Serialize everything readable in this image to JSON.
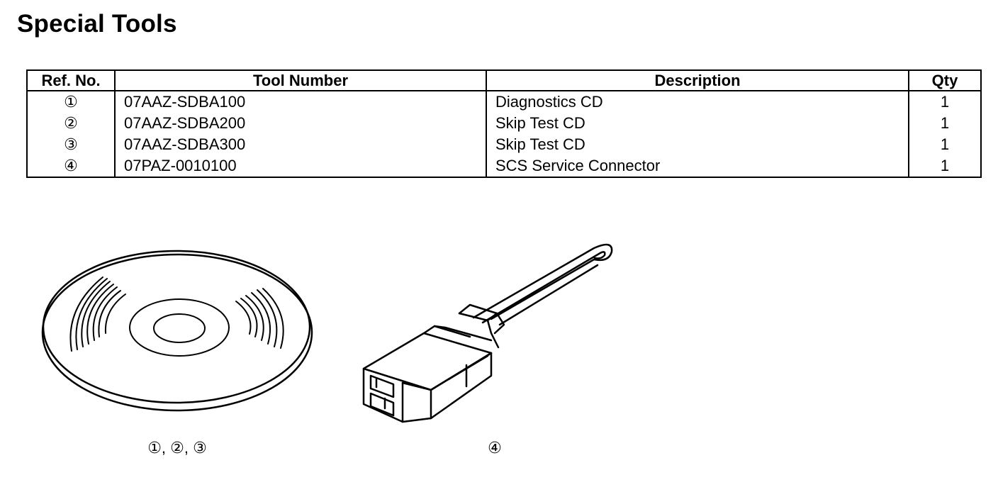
{
  "page": {
    "title": "Special Tools"
  },
  "table": {
    "headers": {
      "ref": "Ref. No.",
      "tool": "Tool Number",
      "description": "Description",
      "qty": "Qty"
    },
    "rows": [
      {
        "ref": "①",
        "tool": "07AAZ-SDBA100",
        "description": "Diagnostics CD",
        "qty": "1"
      },
      {
        "ref": "②",
        "tool": "07AAZ-SDBA200",
        "description": "Skip Test CD",
        "qty": "1"
      },
      {
        "ref": "③",
        "tool": "07AAZ-SDBA300",
        "description": "Skip Test CD",
        "qty": "1"
      },
      {
        "ref": "④",
        "tool": "07PAZ-0010100",
        "description": "SCS Service Connector",
        "qty": "1"
      }
    ]
  },
  "illustrations": {
    "cd": {
      "icon": "cd-disc-icon",
      "caption": "①, ②, ③"
    },
    "connector": {
      "icon": "service-connector-icon",
      "caption": "④"
    }
  }
}
